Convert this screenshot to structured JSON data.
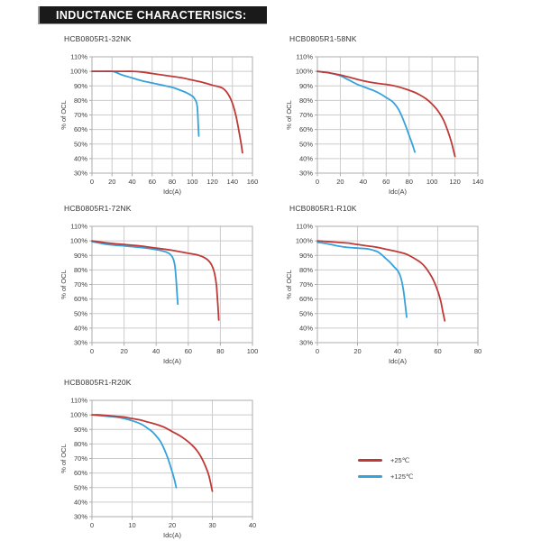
{
  "header": {
    "title": "INDUCTANCE CHARACTERISICS:"
  },
  "colors": {
    "red": "#bf3a37",
    "blue": "#35a2db",
    "grid": "#cccccc",
    "axis": "#adadad",
    "text": "#3c3c3c",
    "titlebar_bg": "#1a1a1a",
    "titlebar_text": "#ffffff"
  },
  "legend": {
    "items": [
      {
        "label": "+25℃",
        "color_key": "red"
      },
      {
        "label": "+125℃",
        "color_key": "blue"
      }
    ]
  },
  "chart_data": [
    {
      "type": "line",
      "title": "HCB0805R1-32NK",
      "xlabel": "Idc(A)",
      "ylabel": "% of OCL",
      "xlim": [
        0,
        160
      ],
      "xticks": [
        0,
        20,
        40,
        60,
        80,
        100,
        120,
        140,
        160
      ],
      "ylim": [
        30,
        110
      ],
      "yticks": [
        110,
        100,
        90,
        80,
        70,
        60,
        50,
        40,
        30
      ],
      "ytick_suffix": "%",
      "grid": true,
      "series": [
        {
          "name": "+25℃",
          "color_key": "red",
          "points": [
            [
              0,
              100
            ],
            [
              10,
              100
            ],
            [
              20,
              100
            ],
            [
              30,
              100
            ],
            [
              40,
              100
            ],
            [
              50,
              99.5
            ],
            [
              60,
              98.5
            ],
            [
              70,
              97.5
            ],
            [
              80,
              96.5
            ],
            [
              90,
              95.5
            ],
            [
              100,
              94
            ],
            [
              110,
              92.5
            ],
            [
              120,
              90.5
            ],
            [
              126,
              89.5
            ],
            [
              130,
              88.5
            ],
            [
              134,
              86
            ],
            [
              138,
              81.5
            ],
            [
              141,
              76
            ],
            [
              144,
              68
            ],
            [
              147,
              57
            ],
            [
              149,
              49
            ],
            [
              150,
              44
            ]
          ]
        },
        {
          "name": "+125℃",
          "color_key": "blue",
          "points": [
            [
              0,
              100
            ],
            [
              10,
              100
            ],
            [
              20,
              100
            ],
            [
              25,
              99
            ],
            [
              30,
              97.5
            ],
            [
              40,
              95.5
            ],
            [
              50,
              93.5
            ],
            [
              60,
              92
            ],
            [
              70,
              90.5
            ],
            [
              80,
              89
            ],
            [
              90,
              86.5
            ],
            [
              95,
              85
            ],
            [
              100,
              83
            ],
            [
              102,
              81.5
            ],
            [
              104,
              79
            ],
            [
              105,
              75.5
            ],
            [
              105.5,
              70
            ],
            [
              106,
              62
            ],
            [
              106.5,
              55.5
            ]
          ]
        }
      ]
    },
    {
      "type": "line",
      "title": "HCB0805R1-58NK",
      "xlabel": "Idc(A)",
      "ylabel": "% of OCL",
      "xlim": [
        0,
        140
      ],
      "xticks": [
        0,
        20,
        40,
        60,
        80,
        100,
        120,
        140
      ],
      "ylim": [
        30,
        110
      ],
      "yticks": [
        110,
        100,
        90,
        80,
        70,
        60,
        50,
        40,
        30
      ],
      "ytick_suffix": "%",
      "grid": true,
      "series": [
        {
          "name": "+25℃",
          "color_key": "red",
          "points": [
            [
              0,
              100
            ],
            [
              5,
              99.5
            ],
            [
              10,
              99
            ],
            [
              20,
              97.5
            ],
            [
              30,
              95.5
            ],
            [
              40,
              93.5
            ],
            [
              50,
              92
            ],
            [
              60,
              91
            ],
            [
              70,
              89.5
            ],
            [
              80,
              87
            ],
            [
              85,
              85.5
            ],
            [
              90,
              83.5
            ],
            [
              95,
              81
            ],
            [
              100,
              77.5
            ],
            [
              105,
              73
            ],
            [
              110,
              66.5
            ],
            [
              114,
              58.5
            ],
            [
              117,
              51
            ],
            [
              120,
              41.5
            ]
          ]
        },
        {
          "name": "+125℃",
          "color_key": "blue",
          "points": [
            [
              0,
              100
            ],
            [
              5,
              99.5
            ],
            [
              10,
              99
            ],
            [
              20,
              97
            ],
            [
              25,
              95
            ],
            [
              30,
              93
            ],
            [
              35,
              91
            ],
            [
              40,
              89.5
            ],
            [
              45,
              88
            ],
            [
              50,
              86.5
            ],
            [
              55,
              84.5
            ],
            [
              60,
              82
            ],
            [
              65,
              79.5
            ],
            [
              68,
              77
            ],
            [
              71,
              73.5
            ],
            [
              74,
              68.5
            ],
            [
              77,
              62.5
            ],
            [
              80,
              56
            ],
            [
              83,
              49.5
            ],
            [
              85,
              44.5
            ]
          ]
        }
      ]
    },
    {
      "type": "line",
      "title": "HCB0805R1-72NK",
      "xlabel": "Idc(A)",
      "ylabel": "% of OCL",
      "xlim": [
        0,
        100
      ],
      "xticks": [
        0,
        20,
        40,
        60,
        80,
        100
      ],
      "ylim": [
        30,
        110
      ],
      "yticks": [
        110,
        100,
        90,
        80,
        70,
        60,
        50,
        40,
        30
      ],
      "ytick_suffix": "%",
      "grid": true,
      "series": [
        {
          "name": "+25℃",
          "color_key": "red",
          "points": [
            [
              0,
              100
            ],
            [
              10,
              98.5
            ],
            [
              20,
              97.5
            ],
            [
              30,
              96.5
            ],
            [
              40,
              95
            ],
            [
              50,
              93.5
            ],
            [
              55,
              92.5
            ],
            [
              60,
              91.5
            ],
            [
              65,
              90.5
            ],
            [
              68,
              89.5
            ],
            [
              70,
              88.5
            ],
            [
              72,
              87
            ],
            [
              74,
              84.5
            ],
            [
              75.5,
              81
            ],
            [
              76.5,
              77
            ],
            [
              77.5,
              70
            ],
            [
              78,
              63
            ],
            [
              78.5,
              55
            ],
            [
              79,
              45.5
            ]
          ]
        },
        {
          "name": "+125℃",
          "color_key": "blue",
          "points": [
            [
              0,
              99.5
            ],
            [
              10,
              97.5
            ],
            [
              20,
              96.5
            ],
            [
              30,
              95.5
            ],
            [
              40,
              94
            ],
            [
              44,
              93
            ],
            [
              47,
              92
            ],
            [
              49,
              90.5
            ],
            [
              50.5,
              88
            ],
            [
              51.5,
              84
            ],
            [
              52,
              79.5
            ],
            [
              52.5,
              72.5
            ],
            [
              53,
              64
            ],
            [
              53.5,
              56.5
            ]
          ]
        }
      ]
    },
    {
      "type": "line",
      "title": "HCB0805R1-R10K",
      "xlabel": "Idc(A)",
      "ylabel": "% of OCL",
      "xlim": [
        0,
        80
      ],
      "xticks": [
        0,
        20,
        40,
        60,
        80
      ],
      "ylim": [
        30,
        110
      ],
      "yticks": [
        110,
        100,
        90,
        80,
        70,
        60,
        50,
        40,
        30
      ],
      "ytick_suffix": "%",
      "grid": true,
      "series": [
        {
          "name": "+25℃",
          "color_key": "red",
          "points": [
            [
              0,
              100
            ],
            [
              5,
              99.5
            ],
            [
              10,
              99
            ],
            [
              15,
              98.5
            ],
            [
              20,
              97.5
            ],
            [
              25,
              96.5
            ],
            [
              30,
              95.5
            ],
            [
              35,
              94
            ],
            [
              40,
              92.5
            ],
            [
              44,
              91
            ],
            [
              47,
              89
            ],
            [
              50,
              86.5
            ],
            [
              52,
              84.5
            ],
            [
              54,
              81.5
            ],
            [
              56,
              77.5
            ],
            [
              58,
              72.5
            ],
            [
              60,
              65.5
            ],
            [
              61.5,
              58.5
            ],
            [
              62.5,
              51.5
            ],
            [
              63.5,
              45
            ]
          ]
        },
        {
          "name": "+125℃",
          "color_key": "blue",
          "points": [
            [
              0,
              99
            ],
            [
              5,
              98
            ],
            [
              10,
              96.5
            ],
            [
              15,
              95.5
            ],
            [
              20,
              95
            ],
            [
              25,
              94.5
            ],
            [
              28,
              93.5
            ],
            [
              30,
              92.5
            ],
            [
              32,
              90.5
            ],
            [
              34,
              88
            ],
            [
              36,
              85.5
            ],
            [
              38,
              82.5
            ],
            [
              40,
              79.5
            ],
            [
              41,
              77
            ],
            [
              42,
              72.5
            ],
            [
              43,
              65
            ],
            [
              43.8,
              56
            ],
            [
              44.5,
              47.5
            ]
          ]
        }
      ]
    },
    {
      "type": "line",
      "title": "HCB0805R1-R20K",
      "xlabel": "Idc(A)",
      "ylabel": "% of OCL",
      "xlim": [
        0,
        40
      ],
      "xticks": [
        0,
        10,
        20,
        30,
        40
      ],
      "ylim": [
        30,
        110
      ],
      "yticks": [
        110,
        100,
        90,
        80,
        70,
        60,
        50,
        40,
        30
      ],
      "ytick_suffix": "%",
      "grid": true,
      "series": [
        {
          "name": "+25℃",
          "color_key": "red",
          "points": [
            [
              0,
              100
            ],
            [
              2,
              100
            ],
            [
              4,
              99.5
            ],
            [
              6,
              99
            ],
            [
              8,
              98.5
            ],
            [
              10,
              97.5
            ],
            [
              12,
              96.5
            ],
            [
              14,
              95
            ],
            [
              16,
              93.5
            ],
            [
              18,
              91.5
            ],
            [
              20,
              88.5
            ],
            [
              22,
              85.5
            ],
            [
              24,
              81.5
            ],
            [
              25,
              79
            ],
            [
              26,
              76
            ],
            [
              27,
              72
            ],
            [
              28,
              66.5
            ],
            [
              29,
              59.5
            ],
            [
              29.5,
              54
            ],
            [
              30,
              47.5
            ]
          ]
        },
        {
          "name": "+125℃",
          "color_key": "blue",
          "points": [
            [
              0,
              100
            ],
            [
              2,
              99.5
            ],
            [
              4,
              99
            ],
            [
              6,
              98.5
            ],
            [
              8,
              97.5
            ],
            [
              10,
              96
            ],
            [
              12,
              94
            ],
            [
              13,
              92.5
            ],
            [
              14,
              90.5
            ],
            [
              15,
              88.5
            ],
            [
              16,
              85.5
            ],
            [
              17,
              82
            ],
            [
              18,
              76.5
            ],
            [
              19,
              69.5
            ],
            [
              19.8,
              62.5
            ],
            [
              20.5,
              56
            ],
            [
              21,
              50
            ]
          ]
        }
      ]
    }
  ]
}
